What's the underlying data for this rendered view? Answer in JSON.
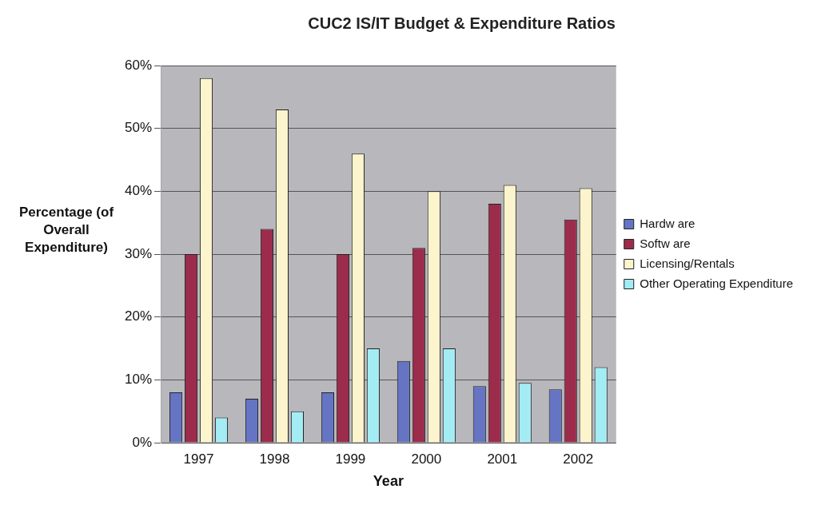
{
  "chart_data": {
    "type": "bar",
    "title": "CUC2 IS/IT Budget & Expenditure Ratios",
    "xlabel": "Year",
    "ylabel": "Percentage (of Overall Expenditure)",
    "categories": [
      "1997",
      "1998",
      "1999",
      "2000",
      "2001",
      "2002"
    ],
    "series": [
      {
        "name": "Hardw are",
        "color": "#6674c4",
        "values": [
          8,
          7,
          8,
          13,
          9,
          8.5
        ]
      },
      {
        "name": "Softw are",
        "color": "#9c2c4c",
        "values": [
          30,
          34,
          30,
          31,
          38,
          35.5
        ]
      },
      {
        "name": "Licensing/Rentals",
        "color": "#fcf4cc",
        "values": [
          58,
          53,
          46,
          40,
          41,
          40.5
        ]
      },
      {
        "name": "Other Operating Expenditure",
        "color": "#a4ecf4",
        "values": [
          4,
          5,
          15,
          15,
          9.5,
          12
        ]
      }
    ],
    "ylim": [
      0,
      60
    ],
    "yticks": [
      {
        "value": 0,
        "label": "0%"
      },
      {
        "value": 10,
        "label": "10%"
      },
      {
        "value": 20,
        "label": "20%"
      },
      {
        "value": 30,
        "label": "30%"
      },
      {
        "value": 40,
        "label": "40%"
      },
      {
        "value": 50,
        "label": "50%"
      },
      {
        "value": 60,
        "label": "60%"
      }
    ],
    "grid": "y",
    "legend": "right"
  }
}
